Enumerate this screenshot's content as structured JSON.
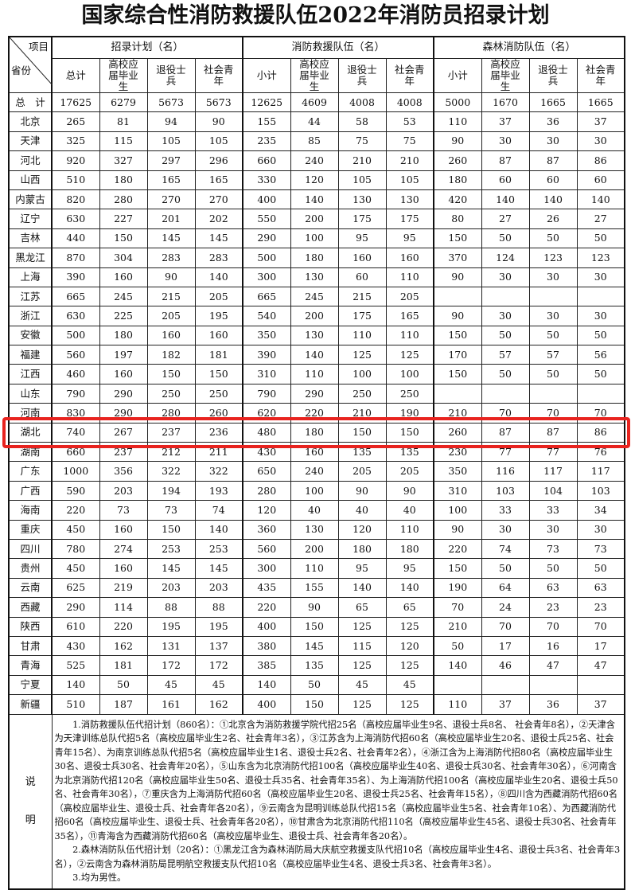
{
  "title": "国家综合性消防救援队伍2022年消防员招录计划",
  "header": {
    "corner_top": "项目",
    "corner_bottom": "省份",
    "groups": [
      "招录计划（名）",
      "消防救援队伍（名）",
      "森林消防队伍（名）"
    ],
    "subcolumns": [
      [
        "总计",
        "高校应届毕业生",
        "退役士兵",
        "社会青年"
      ],
      [
        "小计",
        "高校应届毕业生",
        "退役士兵",
        "社会青年"
      ],
      [
        "小计",
        "高校应届毕业生",
        "退役士兵",
        "社会青年"
      ]
    ]
  },
  "rows": [
    {
      "name": "总　计",
      "v": [
        "17625",
        "6279",
        "5673",
        "5673",
        "12625",
        "4609",
        "4008",
        "4008",
        "5000",
        "1670",
        "1665",
        "1665"
      ]
    },
    {
      "name": "北京",
      "v": [
        "265",
        "81",
        "94",
        "90",
        "155",
        "44",
        "58",
        "53",
        "110",
        "37",
        "36",
        "37"
      ]
    },
    {
      "name": "天津",
      "v": [
        "325",
        "115",
        "105",
        "105",
        "235",
        "85",
        "75",
        "75",
        "90",
        "30",
        "30",
        "30"
      ]
    },
    {
      "name": "河北",
      "v": [
        "920",
        "327",
        "297",
        "296",
        "660",
        "240",
        "210",
        "210",
        "260",
        "87",
        "87",
        "86"
      ]
    },
    {
      "name": "山西",
      "v": [
        "510",
        "180",
        "165",
        "165",
        "330",
        "120",
        "105",
        "105",
        "180",
        "60",
        "60",
        "60"
      ]
    },
    {
      "name": "内蒙古",
      "v": [
        "820",
        "280",
        "270",
        "270",
        "400",
        "140",
        "130",
        "130",
        "420",
        "140",
        "140",
        "140"
      ]
    },
    {
      "name": "辽宁",
      "v": [
        "630",
        "227",
        "201",
        "202",
        "550",
        "200",
        "175",
        "175",
        "80",
        "27",
        "26",
        "27"
      ]
    },
    {
      "name": "吉林",
      "v": [
        "440",
        "150",
        "145",
        "145",
        "290",
        "100",
        "95",
        "95",
        "150",
        "50",
        "50",
        "50"
      ]
    },
    {
      "name": "黑龙江",
      "v": [
        "870",
        "304",
        "283",
        "283",
        "500",
        "180",
        "160",
        "160",
        "370",
        "124",
        "123",
        "123"
      ]
    },
    {
      "name": "上海",
      "v": [
        "390",
        "160",
        "90",
        "140",
        "300",
        "130",
        "60",
        "110",
        "90",
        "30",
        "30",
        "30"
      ]
    },
    {
      "name": "江苏",
      "v": [
        "665",
        "245",
        "215",
        "205",
        "665",
        "245",
        "215",
        "205",
        "",
        "",
        "",
        ""
      ]
    },
    {
      "name": "浙江",
      "v": [
        "630",
        "225",
        "205",
        "195",
        "540",
        "200",
        "175",
        "165",
        "90",
        "30",
        "30",
        "30"
      ]
    },
    {
      "name": "安徽",
      "v": [
        "500",
        "180",
        "160",
        "160",
        "350",
        "130",
        "110",
        "110",
        "150",
        "50",
        "50",
        "50"
      ]
    },
    {
      "name": "福建",
      "v": [
        "560",
        "197",
        "182",
        "181",
        "390",
        "140",
        "125",
        "125",
        "170",
        "57",
        "57",
        "56"
      ]
    },
    {
      "name": "江西",
      "v": [
        "460",
        "160",
        "150",
        "150",
        "310",
        "110",
        "100",
        "100",
        "150",
        "50",
        "50",
        "50"
      ]
    },
    {
      "name": "山东",
      "v": [
        "790",
        "290",
        "250",
        "250",
        "790",
        "290",
        "250",
        "250",
        "",
        "",
        "",
        ""
      ]
    },
    {
      "name": "河南",
      "v": [
        "830",
        "290",
        "280",
        "260",
        "620",
        "220",
        "210",
        "190",
        "210",
        "70",
        "70",
        "70"
      ]
    },
    {
      "name": "湖北",
      "v": [
        "740",
        "267",
        "237",
        "236",
        "480",
        "180",
        "150",
        "150",
        "260",
        "87",
        "87",
        "86"
      ]
    },
    {
      "name": "湖南",
      "v": [
        "660",
        "237",
        "212",
        "211",
        "430",
        "160",
        "135",
        "135",
        "230",
        "77",
        "77",
        "76"
      ]
    },
    {
      "name": "广东",
      "v": [
        "1000",
        "356",
        "322",
        "322",
        "650",
        "240",
        "205",
        "205",
        "350",
        "116",
        "117",
        "117"
      ]
    },
    {
      "name": "广西",
      "v": [
        "590",
        "203",
        "194",
        "193",
        "280",
        "100",
        "90",
        "90",
        "310",
        "103",
        "104",
        "103"
      ]
    },
    {
      "name": "海南",
      "v": [
        "220",
        "73",
        "73",
        "74",
        "120",
        "40",
        "40",
        "40",
        "100",
        "33",
        "33",
        "34"
      ]
    },
    {
      "name": "重庆",
      "v": [
        "450",
        "160",
        "150",
        "140",
        "360",
        "130",
        "120",
        "110",
        "90",
        "30",
        "30",
        "30"
      ]
    },
    {
      "name": "四川",
      "v": [
        "780",
        "274",
        "253",
        "253",
        "560",
        "200",
        "180",
        "180",
        "220",
        "74",
        "73",
        "73"
      ]
    },
    {
      "name": "贵州",
      "v": [
        "450",
        "160",
        "145",
        "145",
        "300",
        "110",
        "95",
        "95",
        "150",
        "50",
        "50",
        "50"
      ]
    },
    {
      "name": "云南",
      "v": [
        "625",
        "219",
        "203",
        "203",
        "435",
        "155",
        "140",
        "140",
        "190",
        "64",
        "63",
        "63"
      ]
    },
    {
      "name": "西藏",
      "v": [
        "290",
        "114",
        "88",
        "88",
        "220",
        "90",
        "65",
        "65",
        "70",
        "24",
        "23",
        "23"
      ]
    },
    {
      "name": "陕西",
      "v": [
        "610",
        "220",
        "195",
        "195",
        "400",
        "150",
        "125",
        "125",
        "210",
        "70",
        "70",
        "70"
      ]
    },
    {
      "name": "甘肃",
      "v": [
        "430",
        "162",
        "131",
        "137",
        "380",
        "145",
        "115",
        "120",
        "50",
        "17",
        "16",
        "17"
      ]
    },
    {
      "name": "青海",
      "v": [
        "525",
        "181",
        "172",
        "172",
        "385",
        "135",
        "125",
        "125",
        "140",
        "46",
        "47",
        "47"
      ]
    },
    {
      "name": "宁夏",
      "v": [
        "140",
        "50",
        "45",
        "45",
        "140",
        "50",
        "45",
        "45",
        "",
        "",
        "",
        ""
      ]
    },
    {
      "name": "新疆",
      "v": [
        "510",
        "187",
        "161",
        "162",
        "400",
        "150",
        "125",
        "125",
        "110",
        "37",
        "36",
        "37"
      ]
    }
  ],
  "highlight": {
    "row": "湖北",
    "color": "#e8231f"
  },
  "notes": {
    "label": [
      "说",
      "明"
    ],
    "paragraphs": [
      "1.消防救援队伍代招计划（860名）：①北京含为消防救援学院代招25名（高校应届毕业生9名、退役士兵8名、 社会青年8名），②天津含为天津训练总队代招5名（高校应届毕业生2名、社会青年3名），③江苏含为上海消防代招60名（高校应届毕业生20名、退役士兵25名、社会青年15名）、为南京训练总队代招5名（高校应届毕业生1名、退役士兵2名、社会青年2名），④浙江含为上海消防代招80名（高校应届毕业生30名、退役士兵30名、社会青年20名），⑤山东含为北京消防代招100名（高校应届毕业生40名、退役士兵30名、社会青年30名），⑥河南含为北京消防代招120名（高校应届毕业生50名、退役士兵35名、社会青年35名）、为上海消防代招100名（高校应届毕业生20名、退役士兵50名、社会青年30名），⑦重庆含为上海消防代招60名（高校应届毕业生20名、退役士兵25名、社会青年15名），⑧四川含为西藏消防代招60名（高校应届毕业生、退役士兵、社会青年各20名），⑨云南含为昆明训练总队代招15名（高校应届毕业生5名、社会青年10名）、为西藏消防代招60名（高校应届毕业生、退役士兵、社会青年各20名），⑩甘肃含为北京消防代招110名（高校应届毕业生45名、退役士兵30名、社会青年35名），⑪青海含为西藏消防代招60名（高校应届毕业生、退役士兵、社会青年各20名）。",
      "2.森林消防队伍代招计划（20名）：①黑龙江含为森林消防局大庆航空救援支队代招10名（高校应届毕业生4名、退役士兵3名、社会青年3名），②云南含为森林消防局昆明航空救援支队代招10名（高校应届毕业生4名、退役士兵3名、社会青年3名）。",
      "3.均为男性。"
    ]
  }
}
